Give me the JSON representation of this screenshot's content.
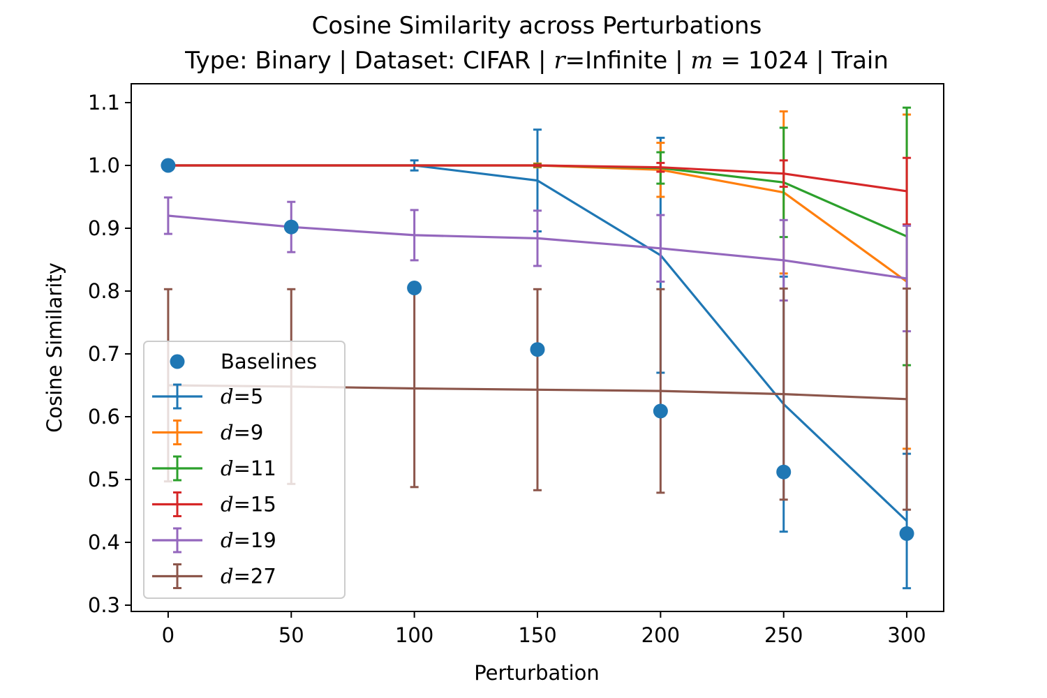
{
  "chart_data": {
    "type": "line",
    "title_line1": "Cosine Similarity across Perturbations",
    "title_line2": {
      "pre": "Type: Binary | Dataset: CIFAR | ",
      "r_var": "r",
      "r_text": "=Infinite | ",
      "m_var": "m",
      "m_text": " = 1024 | Train"
    },
    "xlabel": "Perturbation",
    "ylabel": "Cosine Similarity",
    "xlim": [
      -15,
      315
    ],
    "ylim": [
      0.29,
      1.13
    ],
    "x_ticks": [
      0,
      50,
      100,
      150,
      200,
      250,
      300
    ],
    "x_tick_labels": [
      "0",
      "50",
      "100",
      "150",
      "200",
      "250",
      "300"
    ],
    "y_ticks": [
      0.3,
      0.4,
      0.5,
      0.6,
      0.7,
      0.8,
      0.9,
      1.0,
      1.1
    ],
    "y_tick_labels": [
      "0.3",
      "0.4",
      "0.5",
      "0.6",
      "0.7",
      "0.8",
      "0.9",
      "1.0",
      "1.1"
    ],
    "grid": false,
    "legend_position": "lower-left",
    "x": [
      0,
      50,
      100,
      150,
      200,
      250,
      300
    ],
    "baselines": {
      "name": "Baselines",
      "color": "#1f77b4",
      "values": [
        1.0,
        0.902,
        0.805,
        0.707,
        0.609,
        0.512,
        0.414
      ]
    },
    "series": [
      {
        "label_var": "d",
        "label_value": "=5",
        "color": "#1f77b4",
        "values": [
          1.0,
          1.0,
          1.0,
          0.976,
          0.857,
          0.62,
          0.434
        ],
        "errors": [
          0.0,
          0.0,
          0.008,
          0.081,
          0.187,
          0.203,
          0.107
        ]
      },
      {
        "label_var": "d",
        "label_value": "=9",
        "color": "#ff7f0e",
        "values": [
          1.0,
          1.0,
          1.0,
          1.0,
          0.993,
          0.957,
          0.815
        ],
        "errors": [
          0.0,
          0.0,
          0.0,
          0.003,
          0.043,
          0.129,
          0.266
        ]
      },
      {
        "label_var": "d",
        "label_value": "=11",
        "color": "#2ca02c",
        "values": [
          1.0,
          1.0,
          1.0,
          1.0,
          0.996,
          0.973,
          0.887
        ],
        "errors": [
          0.0,
          0.0,
          0.0,
          0.002,
          0.025,
          0.087,
          0.205
        ]
      },
      {
        "label_var": "d",
        "label_value": "=15",
        "color": "#d62728",
        "values": [
          1.0,
          1.0,
          1.0,
          1.0,
          0.997,
          0.987,
          0.959
        ],
        "errors": [
          0.0,
          0.0,
          0.0,
          0.001,
          0.007,
          0.021,
          0.053
        ]
      },
      {
        "label_var": "d",
        "label_value": "=19",
        "color": "#9467bd",
        "values": [
          0.92,
          0.902,
          0.889,
          0.884,
          0.868,
          0.849,
          0.82
        ],
        "errors": [
          0.029,
          0.04,
          0.04,
          0.044,
          0.053,
          0.064,
          0.084
        ]
      },
      {
        "label_var": "d",
        "label_value": "=27",
        "color": "#8c564b",
        "values": [
          0.65,
          0.648,
          0.645,
          0.643,
          0.641,
          0.636,
          0.628
        ],
        "errors": [
          0.153,
          0.155,
          0.157,
          0.16,
          0.162,
          0.168,
          0.176
        ]
      }
    ]
  }
}
